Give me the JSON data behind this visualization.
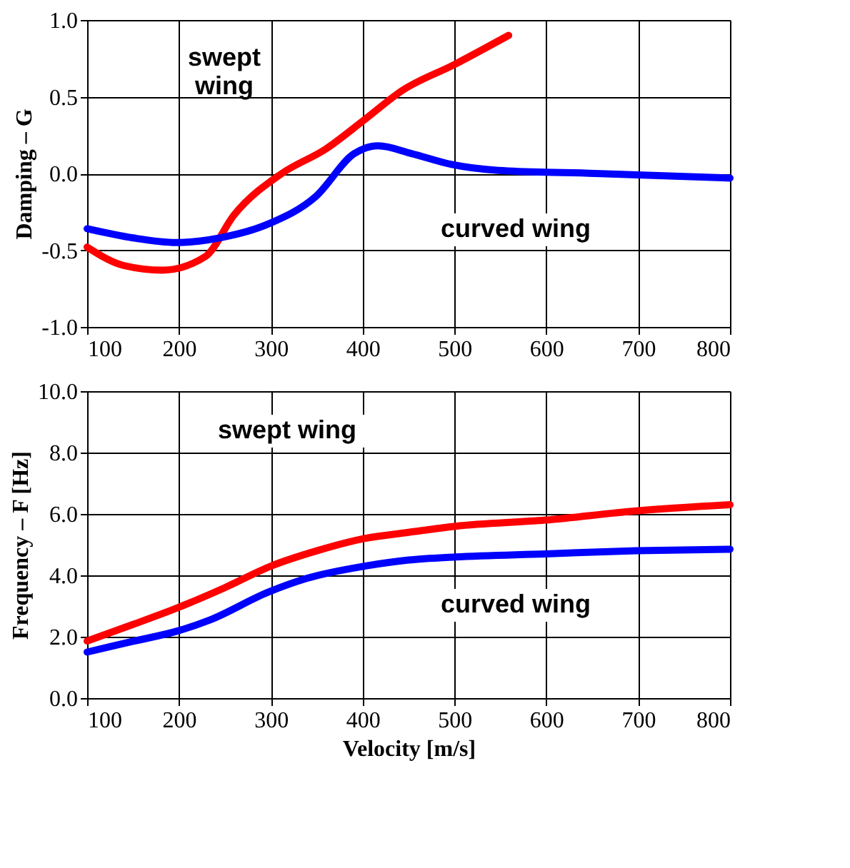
{
  "chart_data": [
    {
      "type": "line",
      "ylabel": "Damping – G",
      "xlim": [
        100,
        800
      ],
      "xticks": [
        100,
        200,
        300,
        400,
        500,
        600,
        700,
        800
      ],
      "ylim": [
        -1.0,
        1.0
      ],
      "yticks": [
        {
          "value": -1,
          "label": "-1.0"
        },
        {
          "value": -0.5,
          "label": "-0.5"
        },
        {
          "value": 0,
          "label": "0.0"
        },
        {
          "value": 0.5,
          "label": "0.5"
        },
        {
          "value": 1,
          "label": "1.0"
        }
      ],
      "grid": true,
      "legend": false,
      "series": [
        {
          "color": "#ff0000",
          "x": [
            100,
            140,
            182,
            229,
            260,
            312,
            360,
            402,
            443,
            500,
            559
          ],
          "values": [
            -0.48,
            -0.6,
            -0.63,
            -0.54,
            -0.27,
            0.0,
            0.16,
            0.35,
            0.54,
            0.71,
            0.9
          ]
        },
        {
          "color": "#0000ff",
          "x": [
            100,
            150,
            197,
            244,
            297,
            349,
            391,
            417,
            453,
            496,
            548,
            653,
            800
          ],
          "values": [
            -0.36,
            -0.42,
            -0.45,
            -0.42,
            -0.33,
            -0.15,
            0.13,
            0.18,
            0.13,
            0.06,
            0.02,
            0.0,
            -0.03
          ]
        }
      ],
      "annotations": [
        "swept\nwing",
        "curved wing"
      ]
    },
    {
      "type": "line",
      "xlabel": "Velocity [m/s]",
      "ylabel": "Frequency – F [Hz]",
      "xlim": [
        100,
        800
      ],
      "xticks": [
        100,
        200,
        300,
        400,
        500,
        600,
        700,
        800
      ],
      "ylim": [
        0,
        10
      ],
      "yticks": [
        {
          "value": 0,
          "label": "0.0"
        },
        {
          "value": 2,
          "label": "2.0"
        },
        {
          "value": 4,
          "label": "4.0"
        },
        {
          "value": 6,
          "label": "6.0"
        },
        {
          "value": 8,
          "label": "8.0"
        },
        {
          "value": 10,
          "label": "10.0"
        }
      ],
      "grid": true,
      "legend": false,
      "series": [
        {
          "color": "#ff0000",
          "x": [
            100,
            150,
            199,
            250,
            300,
            350,
            402,
            450,
            501,
            599,
            698,
            800
          ],
          "values": [
            1.86,
            2.4,
            2.95,
            3.6,
            4.3,
            4.8,
            5.2,
            5.4,
            5.6,
            5.8,
            6.1,
            6.3
          ]
        },
        {
          "color": "#0000ff",
          "x": [
            100,
            150,
            200,
            234,
            297,
            339,
            402,
            450,
            501,
            599,
            698,
            800
          ],
          "values": [
            1.5,
            1.85,
            2.2,
            2.55,
            3.45,
            3.9,
            4.3,
            4.5,
            4.6,
            4.7,
            4.8,
            4.85
          ]
        }
      ],
      "annotations": [
        "swept wing",
        "curved wing"
      ]
    }
  ]
}
